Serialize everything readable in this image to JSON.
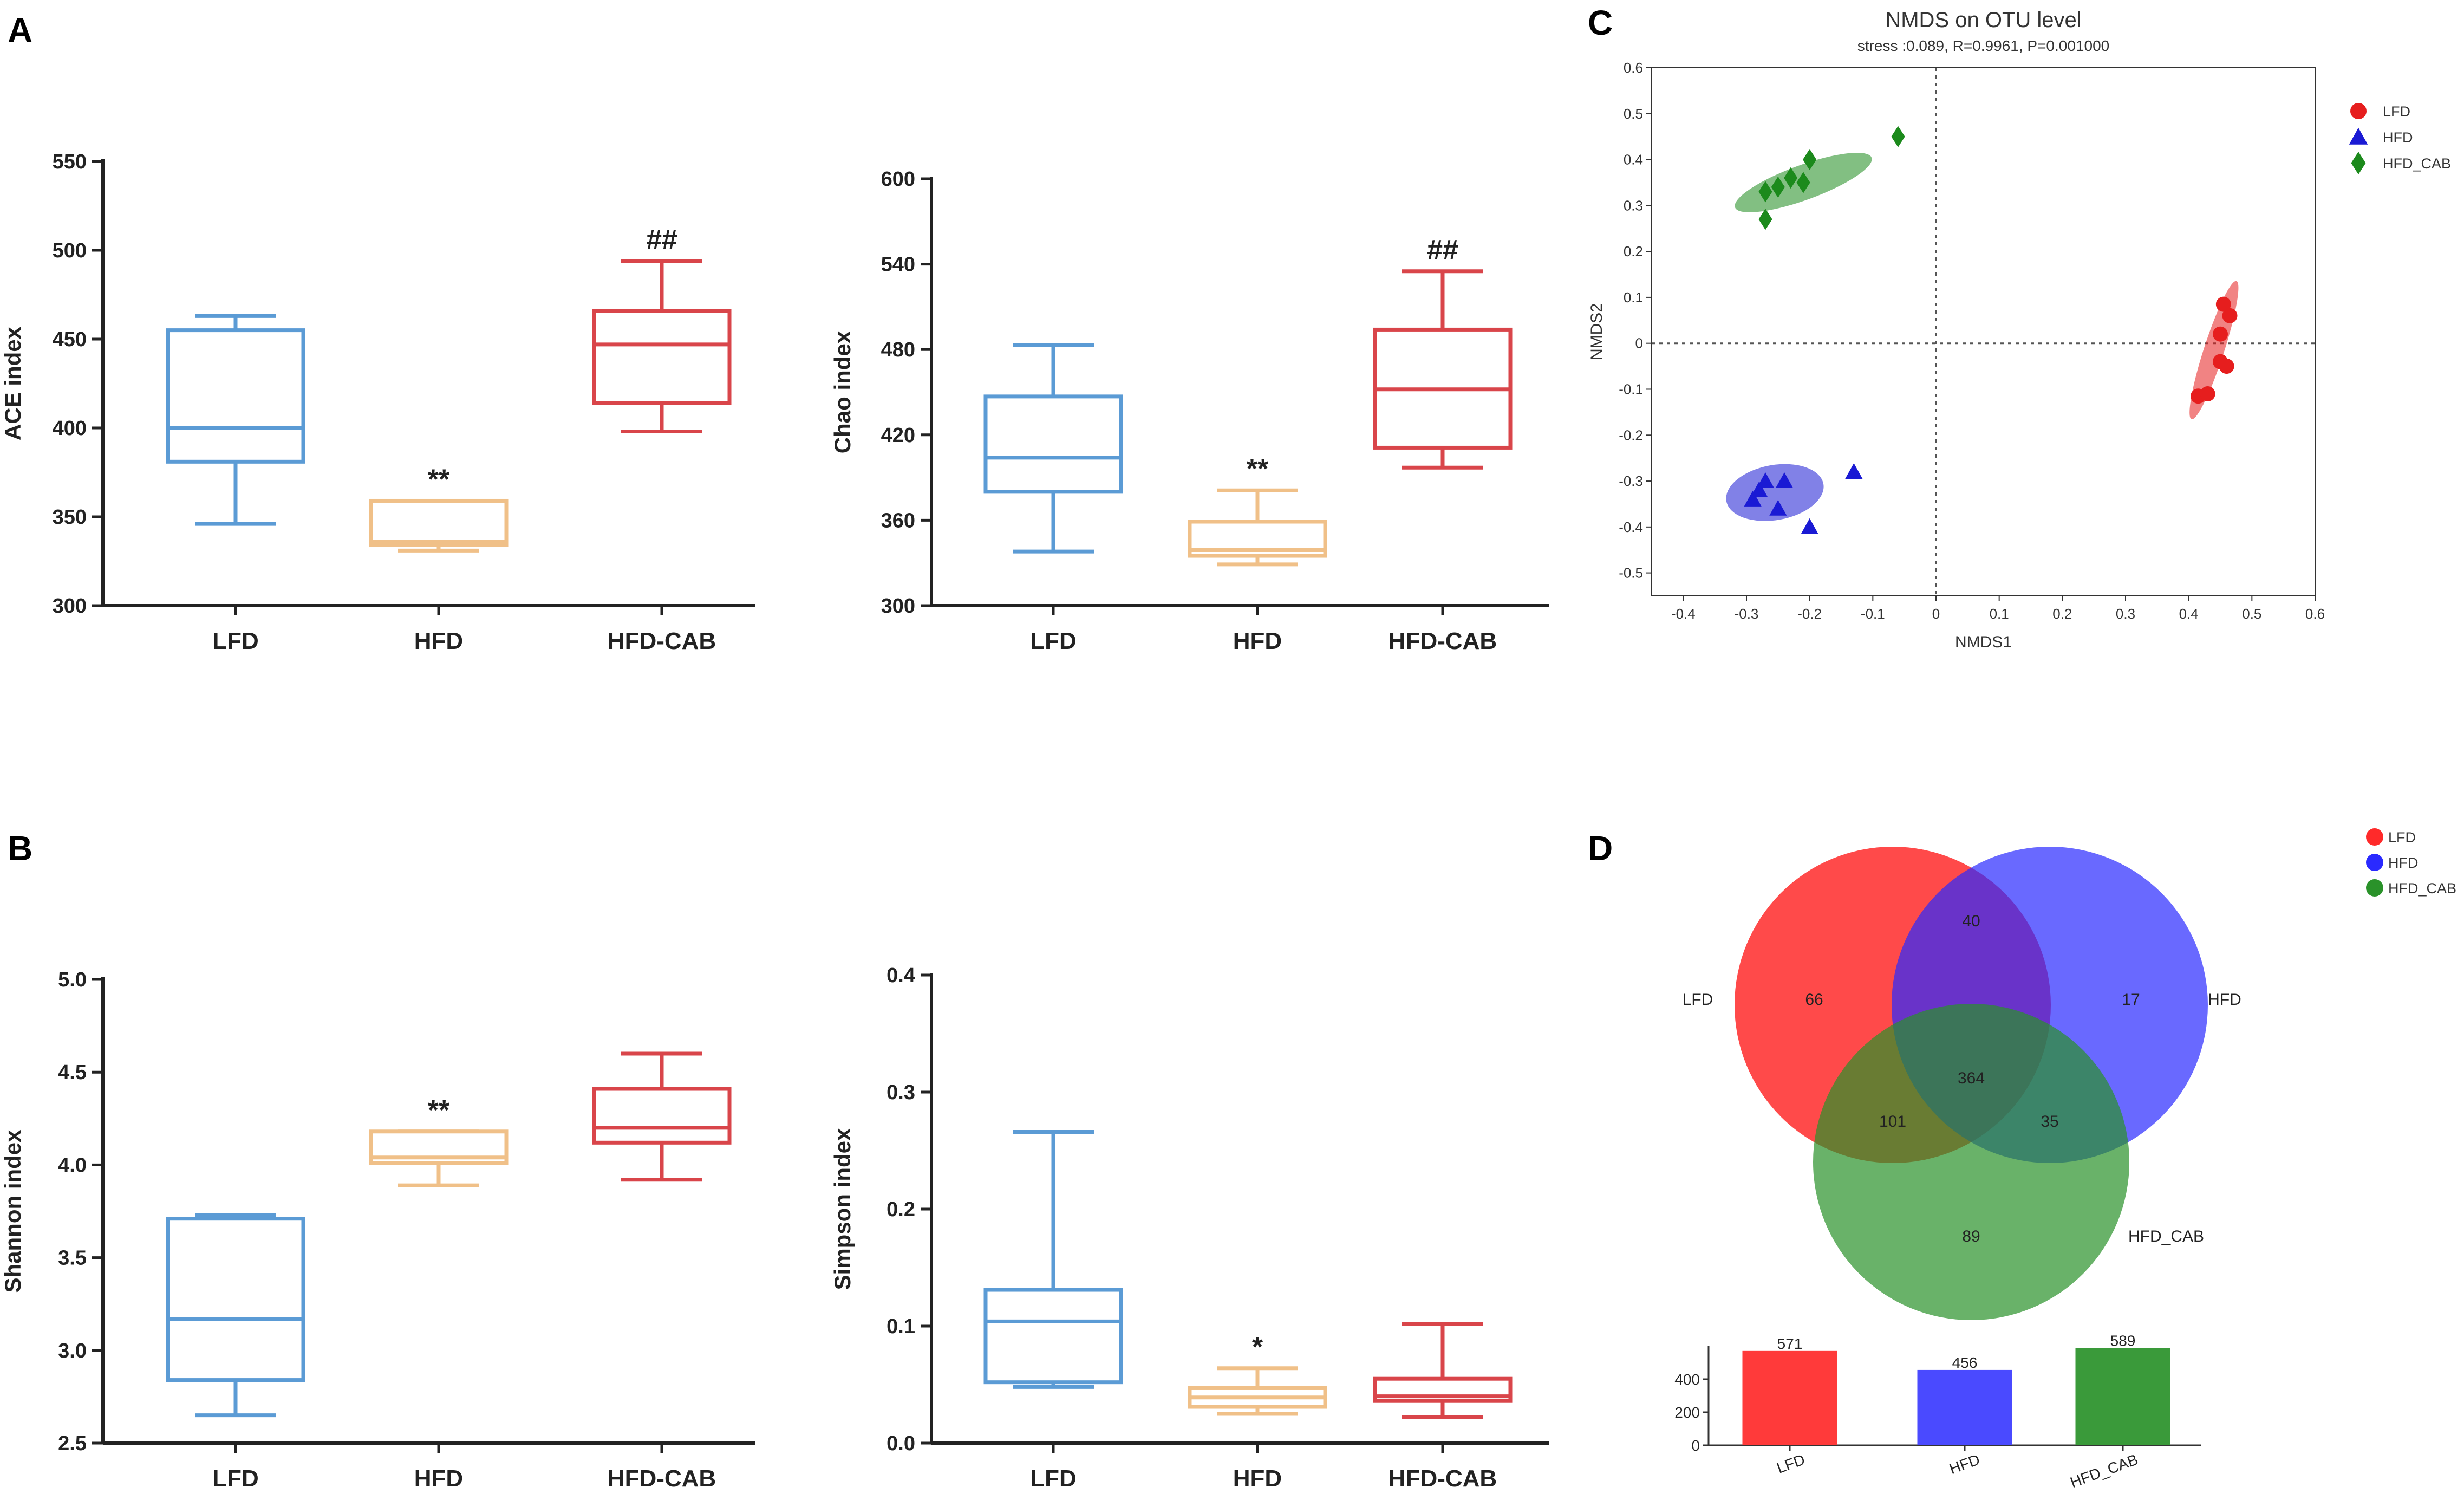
{
  "panels": {
    "A": "A",
    "B": "B",
    "C": "C",
    "D": "D"
  },
  "chart_data": [
    {
      "id": "ace",
      "type": "box",
      "title": "",
      "xlabel": "",
      "ylabel": "ACE index",
      "ylim": [
        300,
        550
      ],
      "yticks": [
        300,
        350,
        400,
        450,
        500,
        550
      ],
      "categories": [
        "LFD",
        "HFD",
        "HFD-CAB"
      ],
      "colors": [
        "#5b9bd5",
        "#f0c088",
        "#d9454a"
      ],
      "boxes": [
        {
          "min": 346,
          "q1": 381,
          "median": 400,
          "q3": 455,
          "max": 463
        },
        {
          "min": 331,
          "q1": 334,
          "median": 336,
          "q3": 359,
          "max": 359
        },
        {
          "min": 398,
          "q1": 414,
          "median": 447,
          "q3": 466,
          "max": 494
        }
      ],
      "annotations": [
        "",
        "**",
        "##"
      ]
    },
    {
      "id": "chao",
      "type": "box",
      "title": "",
      "xlabel": "",
      "ylabel": "Chao index",
      "ylim": [
        300,
        600
      ],
      "yticks": [
        300,
        360,
        420,
        480,
        540,
        600
      ],
      "categories": [
        "LFD",
        "HFD",
        "HFD-CAB"
      ],
      "colors": [
        "#5b9bd5",
        "#f0c088",
        "#d9454a"
      ],
      "boxes": [
        {
          "min": 338,
          "q1": 380,
          "median": 404,
          "q3": 447,
          "max": 483
        },
        {
          "min": 329,
          "q1": 335,
          "median": 339,
          "q3": 359,
          "max": 381
        },
        {
          "min": 397,
          "q1": 411,
          "median": 452,
          "q3": 494,
          "max": 535
        }
      ],
      "annotations": [
        "",
        "**",
        "##"
      ]
    },
    {
      "id": "shannon",
      "type": "box",
      "title": "",
      "xlabel": "",
      "ylabel": "Shannon index",
      "ylim": [
        2.5,
        5.0
      ],
      "yticks": [
        "2.5",
        "3.0",
        "3.5",
        "4.0",
        "4.5",
        "5.0"
      ],
      "categories": [
        "LFD",
        "HFD",
        "HFD-CAB"
      ],
      "colors": [
        "#5b9bd5",
        "#f0c088",
        "#d9454a"
      ],
      "boxes": [
        {
          "min": 2.65,
          "q1": 2.84,
          "median": 3.17,
          "q3": 3.71,
          "max": 3.73
        },
        {
          "min": 3.89,
          "q1": 4.01,
          "median": 4.04,
          "q3": 4.18,
          "max": 4.18
        },
        {
          "min": 3.92,
          "q1": 4.12,
          "median": 4.2,
          "q3": 4.41,
          "max": 4.6
        }
      ],
      "annotations": [
        "",
        "**",
        ""
      ]
    },
    {
      "id": "simpson",
      "type": "box",
      "title": "",
      "xlabel": "",
      "ylabel": "Simpson index",
      "ylim": [
        0.0,
        0.4
      ],
      "yticks": [
        "0.0",
        "0.1",
        "0.2",
        "0.3",
        "0.4"
      ],
      "categories": [
        "LFD",
        "HFD",
        "HFD-CAB"
      ],
      "colors": [
        "#5b9bd5",
        "#f0c088",
        "#d9454a"
      ],
      "boxes": [
        {
          "min": 0.048,
          "q1": 0.052,
          "median": 0.104,
          "q3": 0.131,
          "max": 0.266
        },
        {
          "min": 0.025,
          "q1": 0.031,
          "median": 0.039,
          "q3": 0.047,
          "max": 0.064
        },
        {
          "min": 0.022,
          "q1": 0.036,
          "median": 0.04,
          "q3": 0.055,
          "max": 0.102
        }
      ],
      "annotations": [
        "",
        "*",
        ""
      ]
    },
    {
      "id": "nmds",
      "type": "scatter",
      "title": "NMDS on OTU level",
      "subtitle": "stress :0.089, R=0.9961, P=0.001000",
      "xlabel": "NMDS1",
      "ylabel": "NMDS2",
      "xlim": [
        -0.45,
        0.6
      ],
      "ylim": [
        -0.55,
        0.6
      ],
      "xticks": [
        "-0.4",
        "-0.3",
        "-0.2",
        "-0.1",
        "0",
        "0.1",
        "0.2",
        "0.3",
        "0.4",
        "0.5",
        "0.6"
      ],
      "yticks": [
        "-0.5",
        "-0.4",
        "-0.3",
        "-0.2",
        "-0.1",
        "0",
        "0.1",
        "0.2",
        "0.3",
        "0.4",
        "0.5",
        "0.6"
      ],
      "legend_position": "top-right",
      "series": [
        {
          "name": "LFD",
          "marker": "circle",
          "color": "#e61e1e",
          "points": [
            [
              0.415,
              -0.115
            ],
            [
              0.43,
              -0.11
            ],
            [
              0.45,
              -0.04
            ],
            [
              0.46,
              -0.05
            ],
            [
              0.45,
              0.02
            ],
            [
              0.465,
              0.06
            ],
            [
              0.455,
              0.085
            ]
          ],
          "ellipse": {
            "cx": 0.44,
            "cy": -0.015,
            "rx": 0.115,
            "ry": 0.022,
            "angle": -72
          }
        },
        {
          "name": "HFD",
          "marker": "triangle",
          "color": "#1a1ad4",
          "points": [
            [
              -0.29,
              -0.34
            ],
            [
              -0.28,
              -0.32
            ],
            [
              -0.27,
              -0.3
            ],
            [
              -0.25,
              -0.36
            ],
            [
              -0.24,
              -0.3
            ],
            [
              -0.2,
              -0.4
            ],
            [
              -0.13,
              -0.28
            ]
          ],
          "ellipse": {
            "cx": -0.255,
            "cy": -0.325,
            "rx": 0.078,
            "ry": 0.06,
            "angle": -10
          }
        },
        {
          "name": "HFD_CAB",
          "marker": "diamond",
          "color": "#1c8a1c",
          "points": [
            [
              -0.27,
              0.27
            ],
            [
              -0.27,
              0.33
            ],
            [
              -0.25,
              0.34
            ],
            [
              -0.23,
              0.36
            ],
            [
              -0.21,
              0.35
            ],
            [
              -0.2,
              0.4
            ],
            [
              -0.06,
              0.45
            ]
          ],
          "ellipse": {
            "cx": -0.21,
            "cy": 0.35,
            "rx": 0.115,
            "ry": 0.038,
            "angle": -20
          }
        }
      ]
    },
    {
      "id": "venn",
      "type": "venn",
      "sets": [
        {
          "name": "LFD",
          "color": "#ff2a2a"
        },
        {
          "name": "HFD",
          "color": "#2a2aff"
        },
        {
          "name": "HFD_CAB",
          "color": "#2a922a"
        }
      ],
      "regions": {
        "LFD_only": "66",
        "HFD_only": "17",
        "HFD_CAB_only": "89",
        "LFD_HFD": "40",
        "LFD_HFD_CAB": "101",
        "HFD_HFD_CAB": "35",
        "all": "364"
      },
      "legend_position": "top-right"
    },
    {
      "id": "venn_bars",
      "type": "bar",
      "categories": [
        "LFD",
        "HFD",
        "HFD_CAB"
      ],
      "values": [
        571,
        456,
        589
      ],
      "colors": [
        "#ff3a3a",
        "#4a4aff",
        "#3a9a3a"
      ],
      "ylim": [
        0,
        600
      ],
      "yticks": [
        "0",
        "200",
        "400"
      ]
    }
  ]
}
